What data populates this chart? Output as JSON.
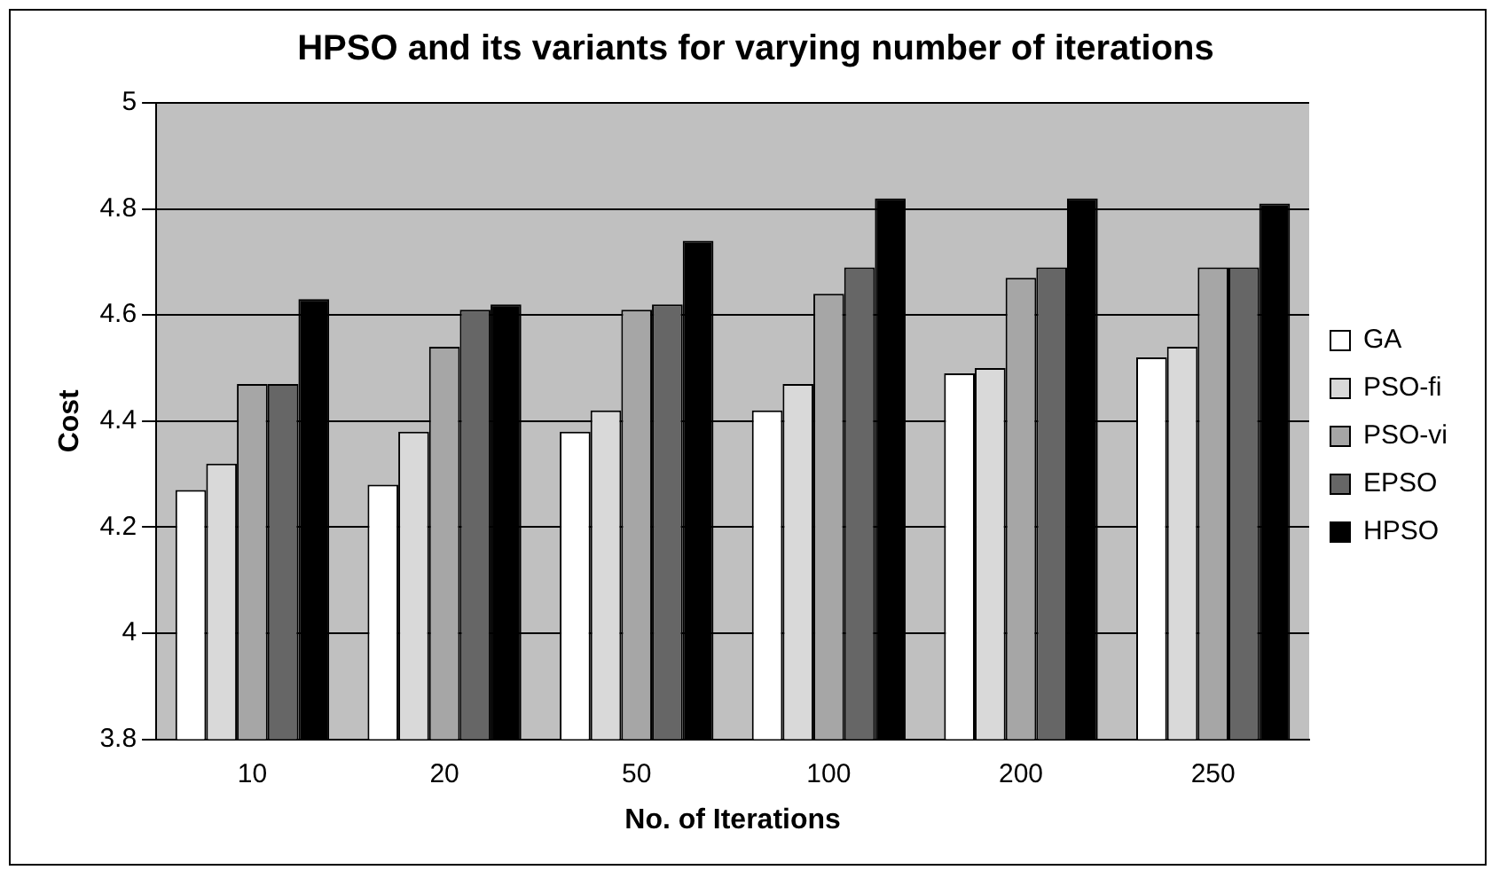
{
  "chart_data": {
    "type": "bar",
    "title": "HPSO and its variants for varying number of iterations",
    "xlabel": "No. of Iterations",
    "ylabel": "Cost",
    "categories": [
      "10",
      "20",
      "50",
      "100",
      "200",
      "250"
    ],
    "series": [
      {
        "name": "GA",
        "color": "#ffffff",
        "values": [
          4.27,
          4.28,
          4.38,
          4.42,
          4.49,
          4.52
        ]
      },
      {
        "name": "PSO-fi",
        "color": "#d9d9d9",
        "values": [
          4.32,
          4.38,
          4.42,
          4.47,
          4.5,
          4.54
        ]
      },
      {
        "name": "PSO-vi",
        "color": "#a6a6a6",
        "values": [
          4.47,
          4.54,
          4.61,
          4.64,
          4.67,
          4.69
        ]
      },
      {
        "name": "EPSO",
        "color": "#666666",
        "values": [
          4.47,
          4.61,
          4.62,
          4.69,
          4.69,
          4.69
        ]
      },
      {
        "name": "HPSO",
        "color": "#000000",
        "values": [
          4.63,
          4.62,
          4.74,
          4.82,
          4.82,
          4.81
        ]
      }
    ],
    "ylim": [
      3.8,
      5
    ],
    "yticks": [
      3.8,
      4,
      4.2,
      4.4,
      4.6,
      4.8,
      5
    ],
    "grid": "y",
    "legend": "right"
  }
}
